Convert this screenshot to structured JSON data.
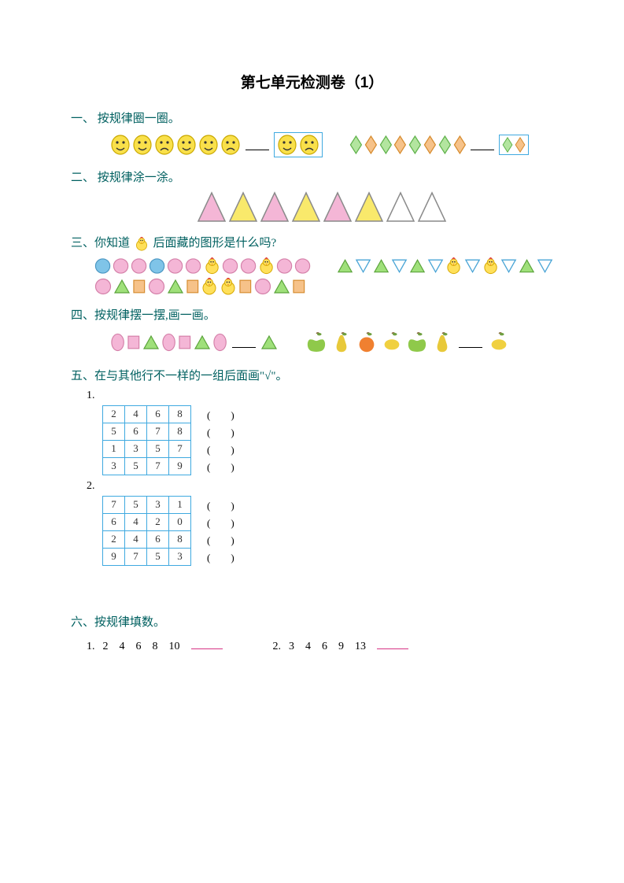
{
  "title": "第七单元检测卷（1）",
  "colors": {
    "heading": "#006060",
    "tableBorder": "#3fa9e0",
    "boxBorder": "#3fa9e0",
    "blankPink": "#d63384",
    "face_yellow": "#f9e04a",
    "face_stroke": "#c9a800",
    "diamond_green_fill": "#b3e59f",
    "diamond_green_stroke": "#5fb14a",
    "diamond_orange_fill": "#f6c289",
    "diamond_orange_stroke": "#d68b2e",
    "tri_pink": "#f4b6d6",
    "tri_yellow": "#f9e96b",
    "tri_outline": "#8a8a8a",
    "circle_blue": "#7fc4e8",
    "circle_pink": "#f4b6d6",
    "circle_pink_stroke": "#d47fa8",
    "circle_blue_stroke": "#4a96c2",
    "tri_green_fill": "#9fe07a",
    "tri_green_stroke": "#5aa33a",
    "tri_white_stroke": "#4aa5d6",
    "rect_orange": "#f6c289",
    "rect_orange_stroke": "#d68b2e",
    "oval_pink": "#f4b6d6",
    "oval_pink_stroke": "#d47fa8",
    "rect_pink": "#f4b6d6",
    "apple_green": "#8fc94a",
    "pear_yellow": "#e8c93a",
    "orange_fruit": "#f08030",
    "lemon_fruit": "#f0d040"
  },
  "q1": {
    "heading": "一、 按规律圈一圈。",
    "faces": [
      "smile",
      "smile",
      "sad",
      "smile",
      "smile",
      "sad"
    ],
    "answer_faces": [
      "smile",
      "sad"
    ],
    "diamonds": [
      "g",
      "o",
      "g",
      "o",
      "g",
      "o",
      "g",
      "o"
    ],
    "answer_diamonds": [
      "g",
      "o"
    ]
  },
  "q2": {
    "heading": "二、 按规律涂一涂。",
    "triangles": [
      "pink",
      "yellow",
      "pink",
      "yellow",
      "pink",
      "yellow",
      "none",
      "none"
    ]
  },
  "q3": {
    "heading_before": "三、你知道",
    "heading_after": "后面藏的图形是什么吗?",
    "row1_left": [
      "cb",
      "cp",
      "cp",
      "cb",
      "cp",
      "cp",
      "chick",
      "cp",
      "cp",
      "chick",
      "cp",
      "cp"
    ],
    "row1_right": [
      "tg",
      "tw",
      "tg",
      "tw",
      "tg",
      "tw",
      "chick",
      "tw",
      "chick",
      "tw",
      "tg",
      "tw"
    ],
    "row2": [
      "cp",
      "tg",
      "ro",
      "cp",
      "tg",
      "ro",
      "chick",
      "chick",
      "ro",
      "cp",
      "tg",
      "ro"
    ]
  },
  "q4": {
    "heading": "四、按规律摆一摆,画一画。",
    "left": [
      "op",
      "rp",
      "tg",
      "op",
      "rp",
      "tg",
      "op"
    ],
    "left_after": [
      "tg"
    ],
    "right": [
      "apple",
      "pear",
      "orange",
      "lemon",
      "apple",
      "pear"
    ],
    "right_after": [
      "lemon"
    ]
  },
  "q5": {
    "heading": "五、在与其他行不一样的一组后面画\"√\"。",
    "sub1": "1.",
    "sub2": "2.",
    "table1": [
      [
        "2",
        "4",
        "6",
        "8"
      ],
      [
        "5",
        "6",
        "7",
        "8"
      ],
      [
        "1",
        "3",
        "5",
        "7"
      ],
      [
        "3",
        "5",
        "7",
        "9"
      ]
    ],
    "table2": [
      [
        "7",
        "5",
        "3",
        "1"
      ],
      [
        "6",
        "4",
        "2",
        "0"
      ],
      [
        "2",
        "4",
        "6",
        "8"
      ],
      [
        "9",
        "7",
        "5",
        "3"
      ]
    ],
    "paren": "(　　)"
  },
  "q6": {
    "heading": "六、按规律填数。",
    "item1_label": "1.",
    "item1_nums": "2　4　6　8　10",
    "item2_label": "2.",
    "item2_nums": "3　4　6　9　13"
  }
}
